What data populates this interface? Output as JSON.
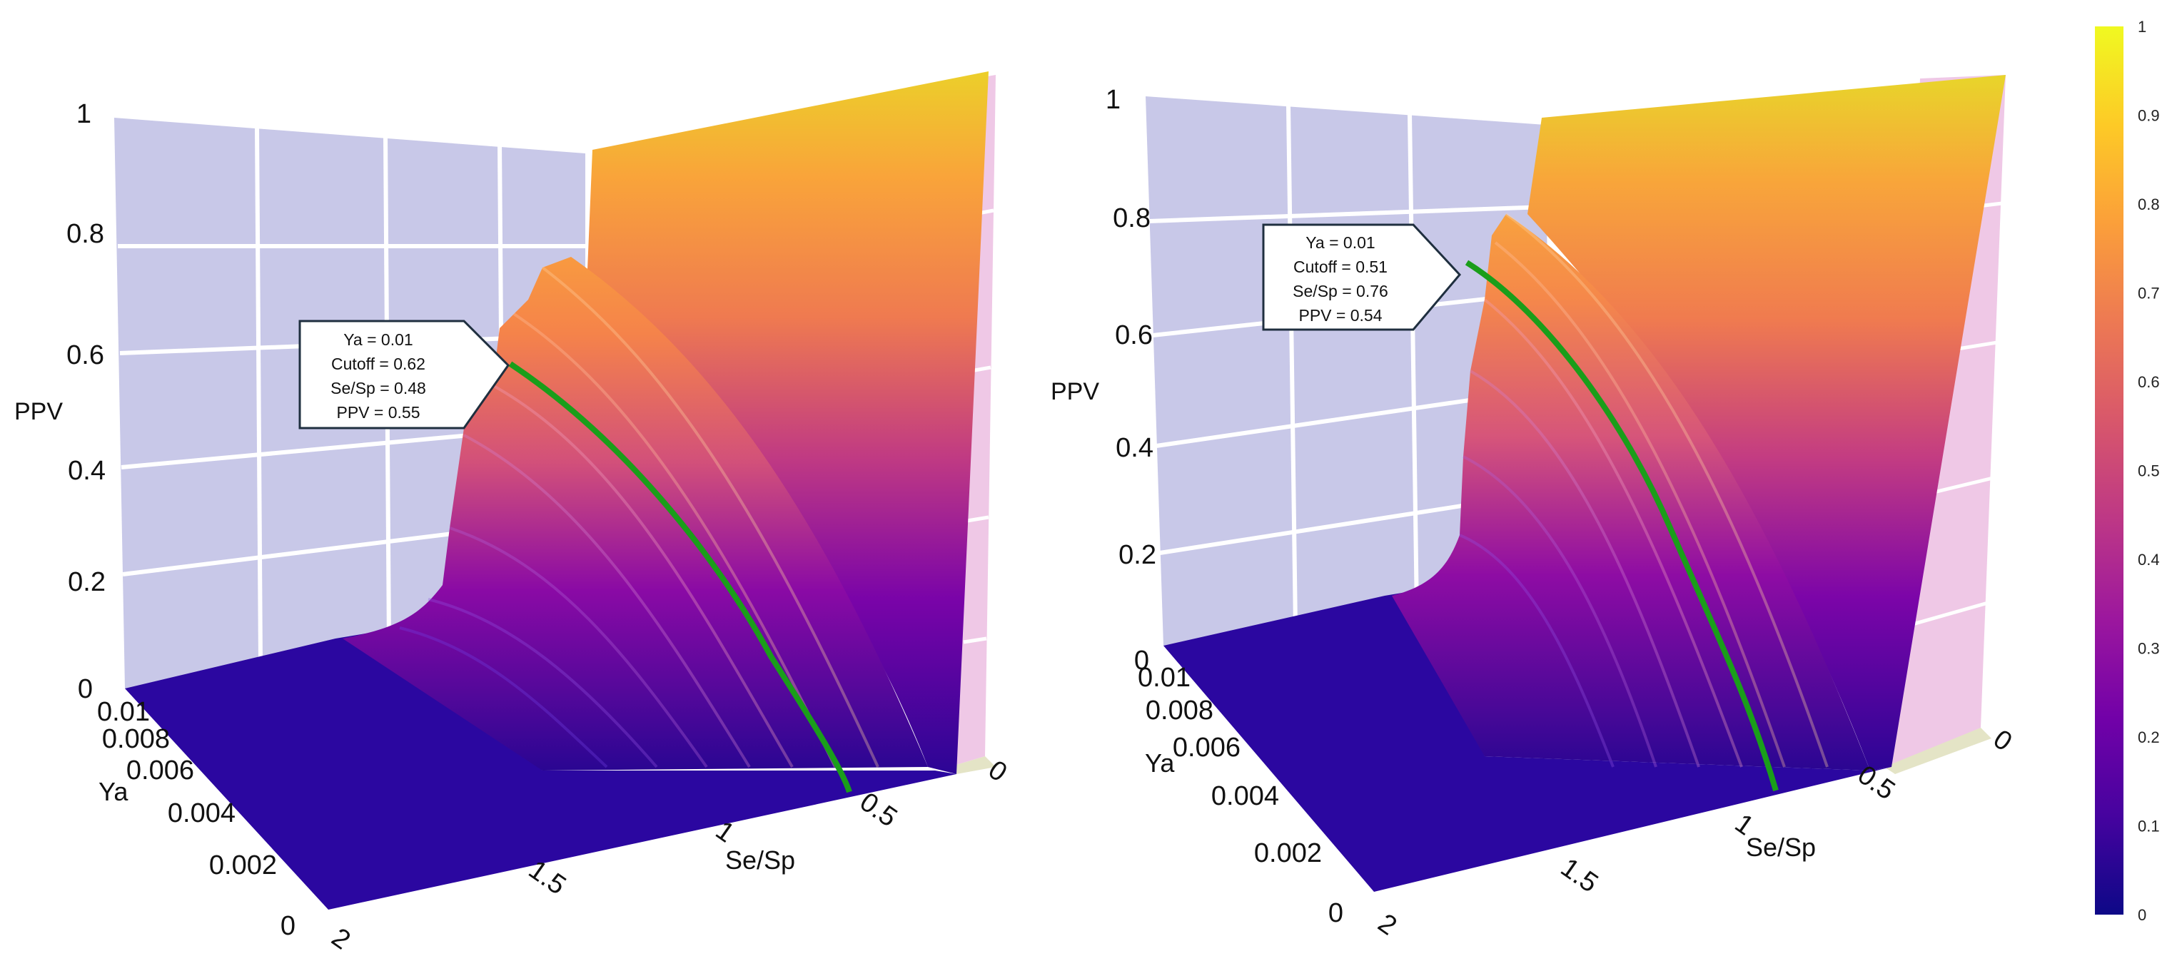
{
  "chart_data": [
    {
      "type": "surface3d",
      "z_label": "PPV",
      "x_label": "Ya",
      "y_label": "Se/Sp",
      "z_ticks": [
        "0",
        "0.2",
        "0.4",
        "0.6",
        "0.8",
        "1"
      ],
      "x_ticks": [
        "0",
        "0.002",
        "0.004",
        "0.006",
        "0.008",
        "0.01"
      ],
      "y_ticks": [
        "2",
        "1.5",
        "1",
        "0.5",
        "0"
      ],
      "zlim": [
        0,
        1
      ],
      "xlim": [
        0,
        0.01
      ],
      "ylim": [
        0,
        2
      ],
      "colorscale": "plasma",
      "highlight_curve": {
        "color": "#1a9e1a"
      },
      "annotation": {
        "lines": [
          "Ya = 0.01",
          "Cutoff = 0.62",
          "Se/Sp  = 0.48",
          "PPV = 0.55"
        ],
        "point": {
          "Ya": 0.01,
          "Se_Sp": 0.48,
          "PPV": 0.55
        }
      }
    },
    {
      "type": "surface3d",
      "z_label": "PPV",
      "x_label": "Ya",
      "y_label": "Se/Sp",
      "z_ticks": [
        "0",
        "0.2",
        "0.4",
        "0.6",
        "0.8",
        "1"
      ],
      "x_ticks": [
        "0.002",
        "0.004",
        "0.006",
        "0.008",
        "0.01"
      ],
      "y_ticks": [
        "2",
        "1.5",
        "1",
        "0.5",
        "0"
      ],
      "zero_label": "0",
      "zlim": [
        0,
        1
      ],
      "xlim": [
        0,
        0.01
      ],
      "ylim": [
        0,
        2
      ],
      "colorscale": "plasma",
      "highlight_curve": {
        "color": "#1a9e1a"
      },
      "annotation": {
        "lines": [
          "Ya = 0.01",
          "Cutoff = 0.51",
          "Se/Sp  = 0.76",
          "PPV = 0.54"
        ],
        "point": {
          "Ya": 0.01,
          "Se_Sp": 0.76,
          "PPV": 0.54
        }
      }
    }
  ],
  "colorbar": {
    "ticks": [
      "0",
      "0.1",
      "0.2",
      "0.3",
      "0.4",
      "0.5",
      "0.6",
      "0.7",
      "0.8",
      "0.9",
      "1"
    ],
    "range": [
      0,
      1
    ],
    "stops": [
      "#0d0887",
      "#46039f",
      "#7201a8",
      "#9c179e",
      "#bd3786",
      "#d8576b",
      "#ed7953",
      "#fb9f3a",
      "#fdca26",
      "#f0f921"
    ]
  }
}
